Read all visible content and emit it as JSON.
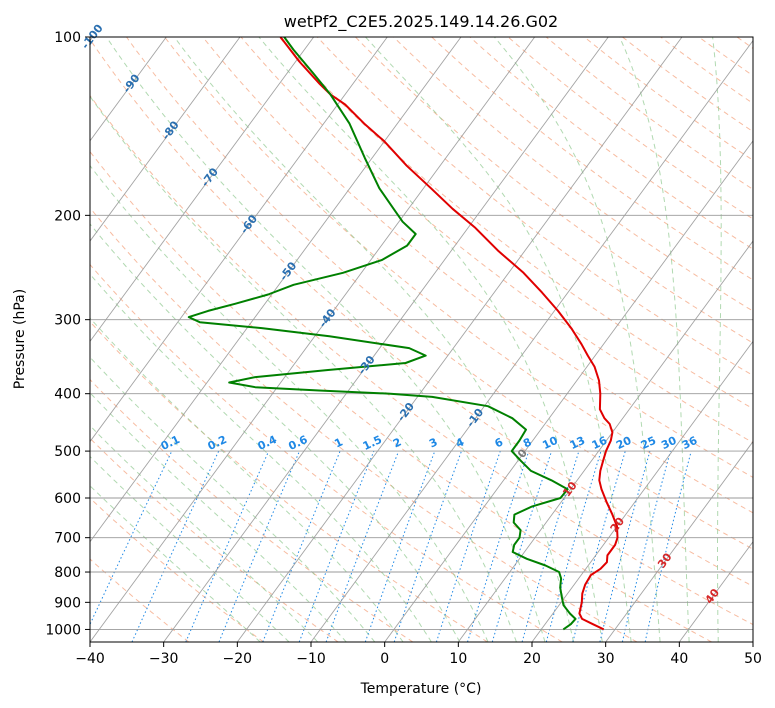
{
  "chart_data": {
    "type": "line",
    "title": "wetPf2_C2E5.2025.149.14.26.G02",
    "xlabel": "Temperature (°C)",
    "ylabel": "Pressure (hPa)",
    "xlim": [
      -40,
      50
    ],
    "ylim": [
      1050,
      100
    ],
    "y_scale": "log",
    "skew": "skew-T",
    "x_ticks": [
      -40,
      -30,
      -20,
      -10,
      0,
      10,
      20,
      30,
      40,
      50
    ],
    "y_ticks": [
      100,
      200,
      300,
      400,
      500,
      600,
      700,
      800,
      900,
      1000
    ],
    "grid": true,
    "series": [
      {
        "color": "#e00000",
        "points": [
          {
            "p": 1000,
            "t": 28.5
          },
          {
            "p": 980,
            "t": 26.5
          },
          {
            "p": 960,
            "t": 24.5
          },
          {
            "p": 940,
            "t": 23.6
          },
          {
            "p": 900,
            "t": 22.8
          },
          {
            "p": 870,
            "t": 22.0
          },
          {
            "p": 840,
            "t": 21.5
          },
          {
            "p": 810,
            "t": 21.3
          },
          {
            "p": 790,
            "t": 22.0
          },
          {
            "p": 770,
            "t": 22.2
          },
          {
            "p": 750,
            "t": 21.6
          },
          {
            "p": 720,
            "t": 21.6
          },
          {
            "p": 700,
            "t": 21.2
          },
          {
            "p": 670,
            "t": 20.0
          },
          {
            "p": 640,
            "t": 18.2
          },
          {
            "p": 610,
            "t": 16.2
          },
          {
            "p": 580,
            "t": 14.2
          },
          {
            "p": 560,
            "t": 13.0
          },
          {
            "p": 540,
            "t": 12.2
          },
          {
            "p": 520,
            "t": 11.6
          },
          {
            "p": 500,
            "t": 11.0
          },
          {
            "p": 480,
            "t": 10.6
          },
          {
            "p": 465,
            "t": 10.0
          },
          {
            "p": 450,
            "t": 8.8
          },
          {
            "p": 440,
            "t": 7.5
          },
          {
            "p": 425,
            "t": 6.0
          },
          {
            "p": 400,
            "t": 4.5
          },
          {
            "p": 380,
            "t": 3.0
          },
          {
            "p": 360,
            "t": 1.0
          },
          {
            "p": 345,
            "t": -1.0
          },
          {
            "p": 330,
            "t": -3.0
          },
          {
            "p": 310,
            "t": -6.0
          },
          {
            "p": 290,
            "t": -9.5
          },
          {
            "p": 270,
            "t": -13.5
          },
          {
            "p": 250,
            "t": -18.0
          },
          {
            "p": 230,
            "t": -23.5
          },
          {
            "p": 210,
            "t": -29.0
          },
          {
            "p": 195,
            "t": -34.0
          },
          {
            "p": 180,
            "t": -39.0
          },
          {
            "p": 165,
            "t": -44.5
          },
          {
            "p": 150,
            "t": -50.0
          },
          {
            "p": 140,
            "t": -54.5
          },
          {
            "p": 130,
            "t": -59.0
          },
          {
            "p": 125,
            "t": -62.0
          },
          {
            "p": 120,
            "t": -64.5
          },
          {
            "p": 110,
            "t": -69.5
          },
          {
            "p": 100,
            "t": -74.5
          }
        ]
      },
      {
        "color": "#008000",
        "points": [
          {
            "p": 1000,
            "t": 23.0
          },
          {
            "p": 980,
            "t": 23.5
          },
          {
            "p": 960,
            "t": 23.6
          },
          {
            "p": 940,
            "t": 22.3
          },
          {
            "p": 910,
            "t": 20.6
          },
          {
            "p": 880,
            "t": 19.5
          },
          {
            "p": 850,
            "t": 18.4
          },
          {
            "p": 820,
            "t": 17.6
          },
          {
            "p": 800,
            "t": 16.7
          },
          {
            "p": 780,
            "t": 14.2
          },
          {
            "p": 760,
            "t": 11.0
          },
          {
            "p": 740,
            "t": 8.4
          },
          {
            "p": 720,
            "t": 7.9
          },
          {
            "p": 700,
            "t": 7.9
          },
          {
            "p": 680,
            "t": 7.3
          },
          {
            "p": 660,
            "t": 5.6
          },
          {
            "p": 640,
            "t": 4.9
          },
          {
            "p": 620,
            "t": 6.5
          },
          {
            "p": 600,
            "t": 9.5
          },
          {
            "p": 580,
            "t": 9.6
          },
          {
            "p": 560,
            "t": 6.5
          },
          {
            "p": 540,
            "t": 2.8
          },
          {
            "p": 520,
            "t": 0.5
          },
          {
            "p": 500,
            "t": -1.8
          },
          {
            "p": 480,
            "t": -1.8
          },
          {
            "p": 460,
            "t": -2.0
          },
          {
            "p": 440,
            "t": -5.0
          },
          {
            "p": 420,
            "t": -9.5
          },
          {
            "p": 405,
            "t": -18.0
          },
          {
            "p": 400,
            "t": -24.0
          },
          {
            "p": 395,
            "t": -34.0
          },
          {
            "p": 390,
            "t": -43.0
          },
          {
            "p": 383,
            "t": -47.0
          },
          {
            "p": 375,
            "t": -44.0
          },
          {
            "p": 365,
            "t": -35.0
          },
          {
            "p": 355,
            "t": -25.0
          },
          {
            "p": 345,
            "t": -23.0
          },
          {
            "p": 335,
            "t": -26.0
          },
          {
            "p": 320,
            "t": -38.0
          },
          {
            "p": 310,
            "t": -48.0
          },
          {
            "p": 303,
            "t": -57.0
          },
          {
            "p": 297,
            "t": -59.0
          },
          {
            "p": 290,
            "t": -57.0
          },
          {
            "p": 282,
            "t": -54.0
          },
          {
            "p": 272,
            "t": -50.5
          },
          {
            "p": 262,
            "t": -48.0
          },
          {
            "p": 250,
            "t": -42.5
          },
          {
            "p": 238,
            "t": -38.5
          },
          {
            "p": 225,
            "t": -36.5
          },
          {
            "p": 215,
            "t": -36.5
          },
          {
            "p": 205,
            "t": -39.5
          },
          {
            "p": 195,
            "t": -42.0
          },
          {
            "p": 180,
            "t": -46.0
          },
          {
            "p": 160,
            "t": -51.0
          },
          {
            "p": 140,
            "t": -56.5
          },
          {
            "p": 125,
            "t": -62.0
          },
          {
            "p": 115,
            "t": -66.5
          },
          {
            "p": 105,
            "t": -71.5
          },
          {
            "p": 100,
            "t": -74.0
          }
        ]
      }
    ],
    "dry_adiabat_labels": [
      -100,
      -90,
      -80,
      -70,
      -60,
      -50,
      -40,
      -30,
      -20,
      -10,
      0,
      10,
      20,
      30,
      40
    ],
    "mixing_ratio_labels": [
      "0.1",
      "0.2",
      "0.4",
      "0.6",
      "1",
      "1.5",
      "2",
      "3",
      "4",
      "6",
      "8",
      "10",
      "13",
      "16",
      "20",
      "25",
      "30",
      "36"
    ],
    "colors": {
      "temperature": "#e00000",
      "dewpoint": "#008000",
      "isotherm": "#9a9a9a",
      "isobar": "#9a9a9a",
      "dry_adiabat": "#f4a582",
      "moist_adiabat": "#90c990",
      "mixing_ratio": "#1e88e5",
      "label_cold": "#2a6fb0",
      "label_warm": "#d62728",
      "label_zero": "#7a7a7a"
    }
  }
}
